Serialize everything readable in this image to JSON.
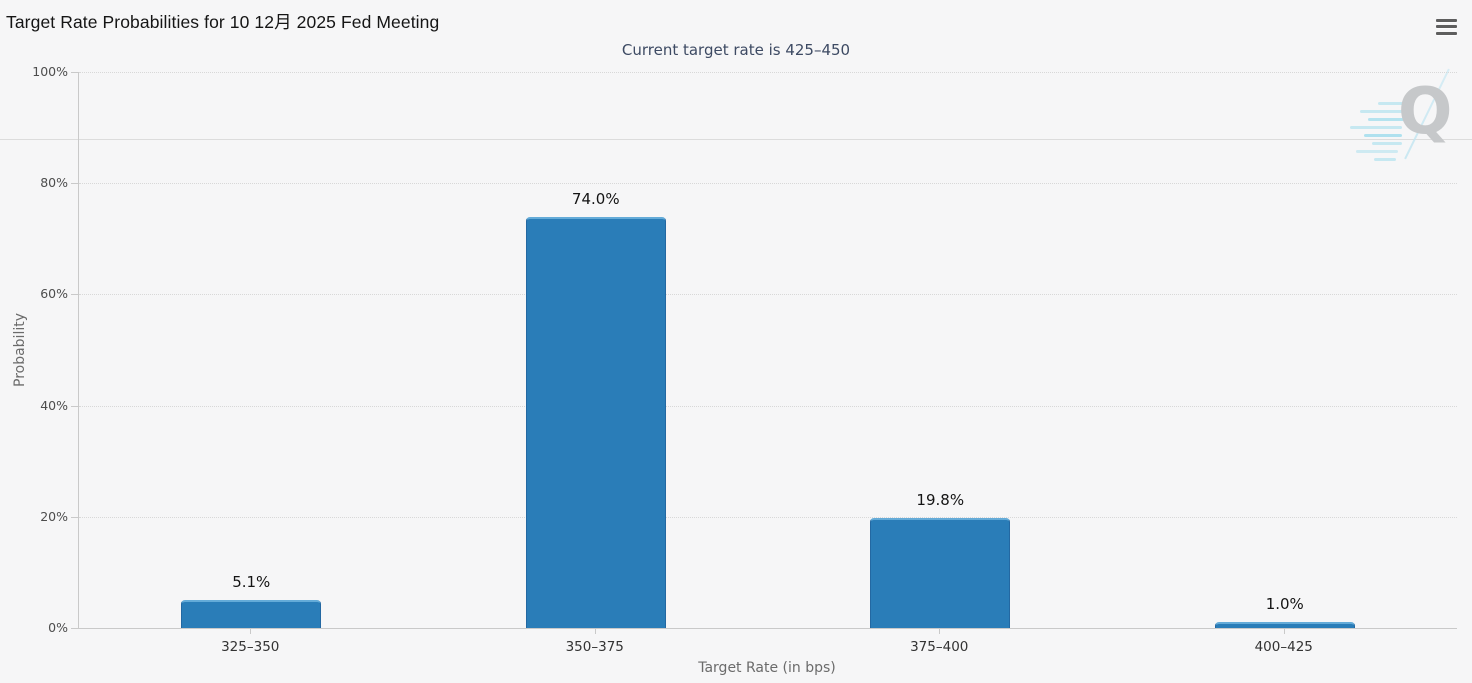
{
  "header": {
    "title": "Target Rate Probabilities for 10 12月 2025 Fed Meeting",
    "menu_icon": "hamburger-menu-icon"
  },
  "watermark": {
    "letter": "Q"
  },
  "chart_data": {
    "type": "bar",
    "title": "Target Rate Probabilities for 10 12月 2025 Fed Meeting",
    "subtitle": "Current target rate is 425–450",
    "categories": [
      "325–350",
      "350–375",
      "375–400",
      "400–425"
    ],
    "values": [
      5.1,
      74.0,
      19.8,
      1.0
    ],
    "data_labels": [
      "5.1%",
      "74.0%",
      "19.8%",
      "1.0%"
    ],
    "xlabel": "Target Rate (in bps)",
    "ylabel": "Probability",
    "ylim": [
      0,
      100
    ],
    "ytick_values": [
      0,
      20,
      40,
      60,
      80,
      100
    ],
    "ytick_labels": [
      "0%",
      "20%",
      "40%",
      "60%",
      "80%",
      "100%"
    ],
    "grid": "horizontal-dotted",
    "legend": "none",
    "colors": {
      "bar_fill": "#2a7db8",
      "bar_border_top": "#64abd8",
      "bar_border_side": "#2368a2",
      "axis_line": "#c9c9c9",
      "grid_line": "#d8d8d8",
      "subtitle_text": "#3d4a63",
      "data_label_text": "#141414",
      "axis_label_text": "#4d4d4d",
      "axis_title_text": "#6b6b6b",
      "background": "#f6f6f7"
    }
  }
}
